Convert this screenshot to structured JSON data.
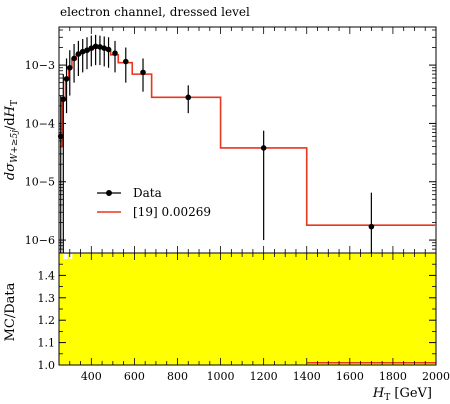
{
  "title": "electron channel, dressed level",
  "legend": [
    {
      "label": "Data",
      "style": "points",
      "color": "#000000"
    },
    {
      "label": "[19] 0.00269",
      "style": "line",
      "color": "#e8361f"
    }
  ],
  "colors": {
    "mc": "#e8361f",
    "data": "#000000",
    "ratio_band": "#ffff00"
  },
  "chart_data": [
    {
      "type": "line",
      "panel": "main",
      "ylabel": "dσW+≥5j/dHT",
      "yscale": "log",
      "ylim": [
        6e-07,
        0.0045
      ],
      "xlim": [
        250,
        2000
      ],
      "yticks": [
        "10−3",
        "10−4",
        "10−5",
        "10−6"
      ],
      "series": [
        {
          "name": "Data",
          "style": "points-with-errors",
          "points": [
            {
              "x": 258,
              "y": 6e-05,
              "lo": 6e-07,
              "hi": 0.0003
            },
            {
              "x": 270,
              "y": 0.00026,
              "lo": 6e-07,
              "hi": 0.0007
            },
            {
              "x": 285,
              "y": 0.00058,
              "lo": 0.00015,
              "hi": 0.0013
            },
            {
              "x": 300,
              "y": 0.0009,
              "lo": 0.0003,
              "hi": 0.0018
            },
            {
              "x": 320,
              "y": 0.0013,
              "lo": 0.0005,
              "hi": 0.0023
            },
            {
              "x": 340,
              "y": 0.00155,
              "lo": 0.00065,
              "hi": 0.0026
            },
            {
              "x": 360,
              "y": 0.0017,
              "lo": 0.00075,
              "hi": 0.0028
            },
            {
              "x": 380,
              "y": 0.0018,
              "lo": 0.00085,
              "hi": 0.003
            },
            {
              "x": 400,
              "y": 0.00195,
              "lo": 0.00095,
              "hi": 0.0032
            },
            {
              "x": 420,
              "y": 0.0021,
              "lo": 0.001,
              "hi": 0.0033
            },
            {
              "x": 440,
              "y": 0.00205,
              "lo": 0.001,
              "hi": 0.0032
            },
            {
              "x": 460,
              "y": 0.00195,
              "lo": 0.00095,
              "hi": 0.0031
            },
            {
              "x": 480,
              "y": 0.00185,
              "lo": 0.0009,
              "hi": 0.003
            },
            {
              "x": 510,
              "y": 0.0016,
              "lo": 0.00075,
              "hi": 0.0026
            },
            {
              "x": 560,
              "y": 0.00115,
              "lo": 0.0005,
              "hi": 0.002
            },
            {
              "x": 640,
              "y": 0.00075,
              "lo": 0.00035,
              "hi": 0.0013
            },
            {
              "x": 850,
              "y": 0.00028,
              "lo": 0.00015,
              "hi": 0.00045
            },
            {
              "x": 1200,
              "y": 3.8e-05,
              "lo": 1e-06,
              "hi": 7.5e-05
            },
            {
              "x": 1700,
              "y": 1.7e-06,
              "lo": 6e-07,
              "hi": 6.5e-06
            }
          ]
        },
        {
          "name": "[19] 0.00269",
          "style": "step",
          "edges": [
            250,
            265,
            280,
            295,
            310,
            330,
            350,
            370,
            390,
            410,
            430,
            450,
            470,
            490,
            525,
            590,
            680,
            1000,
            1400,
            2000
          ],
          "values": [
            4e-05,
            0.00028,
            0.0006,
            0.0009,
            0.00125,
            0.0015,
            0.00165,
            0.00175,
            0.00185,
            0.00195,
            0.00195,
            0.0019,
            0.0018,
            0.0015,
            0.0011,
            0.0007,
            0.00028,
            3.8e-05,
            1.8e-06
          ]
        }
      ]
    },
    {
      "type": "area",
      "panel": "ratio",
      "ylabel": "MC/Data",
      "xlabel": "HT [GeV]",
      "ylim": [
        1.0,
        1.5
      ],
      "xlim": [
        250,
        2000
      ],
      "xticks": [
        400,
        600,
        800,
        1000,
        1200,
        1400,
        1600,
        1800,
        2000
      ],
      "yticks": [
        1.0,
        1.1,
        1.2,
        1.3,
        1.4
      ],
      "band": {
        "x": [
          250,
          2000
        ],
        "low": 1.0,
        "high": 1.5
      },
      "ratio_line": {
        "x": [
          1400,
          2000
        ],
        "y": 1.01
      }
    }
  ]
}
